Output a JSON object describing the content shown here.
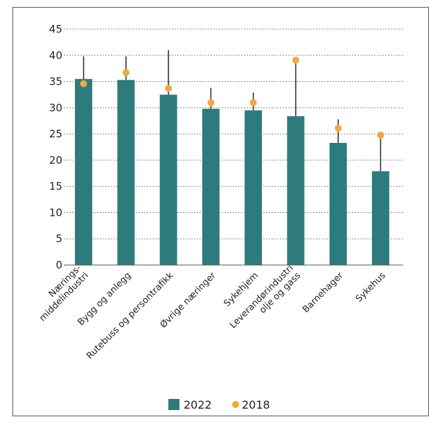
{
  "chart_data": {
    "type": "bar",
    "title": "",
    "xlabel": "",
    "ylabel": "",
    "ylim": [
      0,
      45
    ],
    "yticks": [
      0,
      5,
      10,
      15,
      20,
      25,
      30,
      35,
      40,
      45
    ],
    "grid": true,
    "legend_position": "bottom-center",
    "categories": [
      [
        "Nærings-",
        "middelindustri"
      ],
      [
        "Bygg og anlegg"
      ],
      [
        "Rutebuss og persontrafikk"
      ],
      [
        "Øvrige næringer"
      ],
      [
        "Sykehjem"
      ],
      [
        "Leverandørindustri",
        "olje og gass"
      ],
      [
        "Barnehager"
      ],
      [
        "Sykehus"
      ]
    ],
    "series": [
      {
        "name": "2022",
        "type": "bar",
        "color": "#2e7b7d",
        "values": [
          35.5,
          35.3,
          32.5,
          29.8,
          29.5,
          28.4,
          23.3,
          17.9
        ],
        "error_upper": [
          39.8,
          39.8,
          41.0,
          33.8,
          32.9,
          39.2,
          27.8,
          24.8
        ]
      },
      {
        "name": "2018",
        "type": "point",
        "color": "#f2a93b",
        "values": [
          34.6,
          36.7,
          33.7,
          31.0,
          31.0,
          39.1,
          26.1,
          24.8
        ]
      }
    ]
  }
}
